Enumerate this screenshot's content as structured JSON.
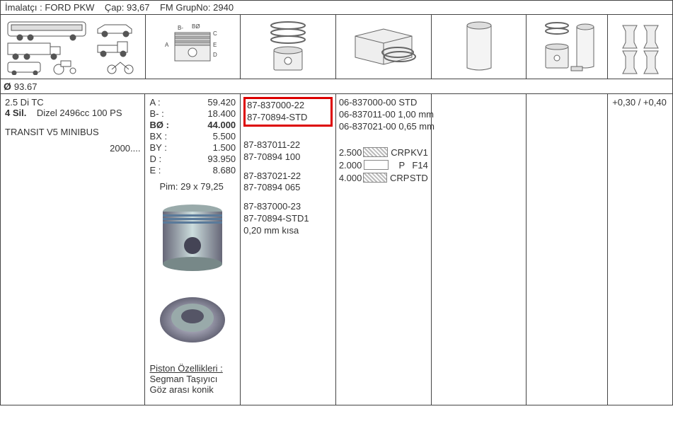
{
  "header": {
    "manufacturer_label": "İmalatçı :",
    "manufacturer": "FORD PKW",
    "cap_label": "Çap:",
    "cap": "93,67",
    "grup_label": "FM GrupNo:",
    "grup": "2940"
  },
  "diameter_row": {
    "symbol": "Ø",
    "value": "93.67"
  },
  "col1": {
    "line1": "2.5 Di TC",
    "line2_bold": "4 Sil.",
    "line2_rest": "Dizel 2496cc 100 PS",
    "line3": "TRANSIT V5 MINIBUS",
    "line4": "2000...."
  },
  "col2": {
    "dims": [
      {
        "label": "A :",
        "val": "59.420"
      },
      {
        "label": "B- :",
        "val": "18.400"
      },
      {
        "label": "BØ :",
        "val": "44.000",
        "bold": true
      },
      {
        "label": "BX :",
        "val": "5.500"
      },
      {
        "label": "BY :",
        "val": "1.500"
      },
      {
        "label": "D :",
        "val": "93.950"
      },
      {
        "label": "E :",
        "val": "8.680"
      }
    ],
    "pim": "Pim: 29 x 79,25",
    "piston_label": "Piston Özellikleri :",
    "piston_note1": "Segman Taşıyıcı",
    "piston_note2": "Göz arası konik"
  },
  "col3": {
    "highlight": [
      "87-837000-22",
      "87-70894-STD"
    ],
    "g2": [
      "87-837011-22",
      "87-70894 100"
    ],
    "g3": [
      "87-837021-22",
      "87-70894 065"
    ],
    "g4": [
      "87-837000-23",
      "87-70894-STD1",
      "0,20 mm kısa"
    ]
  },
  "col4": {
    "parts": [
      "06-837000-00 STD",
      "06-837011-00 1,00 mm",
      "06-837021-00 0,65 mm"
    ],
    "specs": [
      {
        "num": "2.500",
        "pattern": "hatch",
        "t1": "CRP",
        "t2": "KV1"
      },
      {
        "num": "2.000",
        "pattern": "plain",
        "t1": "P",
        "t2": "F14"
      },
      {
        "num": "4.000",
        "pattern": "hatch",
        "t1": "CRP",
        "t2": "STD"
      }
    ]
  },
  "col7": {
    "val": "+0,30 / +0,40"
  }
}
